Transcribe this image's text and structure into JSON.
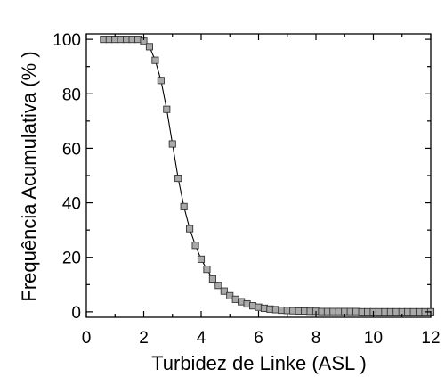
{
  "chart_data": {
    "type": "scatter",
    "title": "",
    "xlabel": "Turbidez de Linke    (ASL )",
    "ylabel": "Frequência Acumulativa    (% )",
    "xlim": [
      0,
      12
    ],
    "ylim": [
      -2,
      102
    ],
    "xticks": [
      0,
      2,
      4,
      6,
      8,
      10,
      12
    ],
    "yticks": [
      0,
      20,
      40,
      60,
      80,
      100
    ],
    "grid": false,
    "marker": "square",
    "marker_fill": "#a9a9a9",
    "marker_stroke": "#333333",
    "line_color": "#000000",
    "series": [
      {
        "x": [
          0.6,
          0.8,
          1.0,
          1.2,
          1.4,
          1.6,
          1.8,
          2.0,
          2.2,
          2.4,
          2.6,
          2.8,
          3.0,
          3.2,
          3.4,
          3.6,
          3.8,
          4.0,
          4.2,
          4.4,
          4.6,
          4.8,
          5.0,
          5.2,
          5.4,
          5.6,
          5.8,
          6.0,
          6.2,
          6.4,
          6.6,
          6.8,
          7.0,
          7.2,
          7.4,
          7.6,
          7.8,
          8.0,
          8.2,
          8.4,
          8.6,
          8.8,
          9.0,
          9.2,
          9.4,
          9.6,
          9.8,
          10.0,
          10.2,
          10.4,
          10.6,
          10.8,
          11.0,
          11.2,
          11.4,
          11.6,
          11.8,
          12.0
        ],
        "y": [
          100,
          100,
          100,
          100,
          100,
          100,
          100,
          99.3,
          97.3,
          92.3,
          84.9,
          74.3,
          61.6,
          49.0,
          38.6,
          30.5,
          24.4,
          19.3,
          15.6,
          12.1,
          9.7,
          7.6,
          5.9,
          4.6,
          3.7,
          2.9,
          2.2,
          1.7,
          1.3,
          1.0,
          0.8,
          0.6,
          0.5,
          0.4,
          0.3,
          0.3,
          0.2,
          0.2,
          0.1,
          0.1,
          0.1,
          0.1,
          0.1,
          0.1,
          0.1,
          0,
          0,
          0,
          0,
          0,
          0,
          0,
          0,
          0,
          0,
          0,
          0,
          0
        ]
      }
    ]
  }
}
